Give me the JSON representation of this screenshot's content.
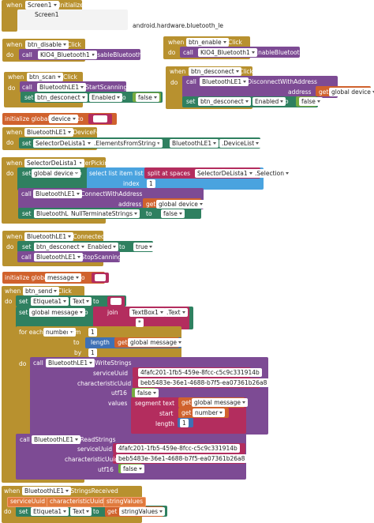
{
  "blocks": [
    {
      "texts": [
        "when",
        "Screen1",
        ".Initialize",
        "Screen1",
        "android.hardware.bluetooth_le"
      ]
    },
    {
      "texts": [
        "when",
        "btn_disable",
        "Click",
        "do",
        "call",
        "KIO4_Bluetooth1",
        ".DisableBluetooth"
      ]
    },
    {
      "texts": [
        "when",
        "btn_enable",
        "Click",
        "do",
        "call",
        "KIO4_Bluetooth1",
        ".EnableBluetooth"
      ]
    },
    {
      "texts": [
        "when",
        "btn_scan",
        "Click",
        "do",
        "call",
        "BluetoothLE1",
        ".StartScanning",
        "set",
        "btn_desconect",
        "Enabled",
        "to",
        "false"
      ]
    },
    {
      "texts": [
        "when",
        "btn_desconect",
        "Click",
        "do",
        "call",
        "BluetoothLE1",
        ".DisconnectWithAddress",
        "address",
        "get",
        "global device",
        "set",
        "btn_desconect",
        "Enabled",
        "to",
        "false"
      ]
    },
    {
      "texts": [
        "initialize global",
        "device",
        "to"
      ]
    },
    {
      "texts": [
        "when",
        "BluetoothLE1",
        ".DeviceFound",
        "do",
        "set",
        "SelectorDeLista1",
        ".ElementsFromString",
        "to",
        "BluetoothLE1",
        ".DeviceList"
      ]
    },
    {
      "texts": [
        "when",
        "SelectorDeLista1",
        ".AfterPicking",
        "do",
        "set",
        "global device",
        "to",
        "select list item list",
        "split at spaces",
        "SelectorDeLista1",
        ".Selection",
        "index",
        "1",
        "call",
        "BluetoothLE1",
        ".ConnectWithAddress",
        "address",
        "get",
        "global device",
        "set",
        "BluetoothLE1",
        "NullTerminateStrings",
        "to",
        "false"
      ]
    },
    {
      "texts": [
        "when",
        "BluetoothLE1",
        ".Connected",
        "do",
        "set",
        "btn_desconect",
        "Enabled",
        "to",
        "true",
        "call",
        "BluetoothLE1",
        ".StopScanning"
      ]
    },
    {
      "texts": [
        "initialize global",
        "message",
        "to"
      ]
    },
    {
      "texts": [
        "when",
        "btn_send",
        "Click",
        "do",
        "set",
        "Etiqueta1",
        "Text",
        "to",
        "set",
        "global message",
        "to",
        "join",
        "TextBox1",
        ".Text",
        "*",
        "for each",
        "number",
        "from",
        "1",
        "to",
        "length",
        "get",
        "global message",
        "by",
        "1",
        "do",
        "call",
        "BluetoothLE1",
        ".WriteStrings",
        "serviceUuid",
        "4fafc201-1fb5-459e-8fcc-c5c9c331914b",
        "characteristicUuid",
        "beb5483e-36e1-4688-b7f5-ea07361b26a8",
        "utf16",
        "false",
        "values",
        "segment text",
        "get",
        "global message",
        "start",
        "get",
        "number",
        "length",
        "1",
        "call",
        "BluetoothLE1",
        ".ReadStrings",
        "serviceUuid",
        "4fafc201-1fb5-459e-8fcc-c5c9c331914b",
        "characteristicUuid",
        "beb5483e-36e1-4688-b7f5-ea07361b26a8",
        "utf16",
        "false"
      ]
    },
    {
      "texts": [
        "when",
        "BluetoothLE1",
        ".StringsReceived",
        "serviceUuid",
        "characteristicUuid",
        "stringValues",
        "do",
        "set",
        "Etiqueta1",
        "Text",
        "to",
        "get",
        "stringValues"
      ]
    }
  ]
}
